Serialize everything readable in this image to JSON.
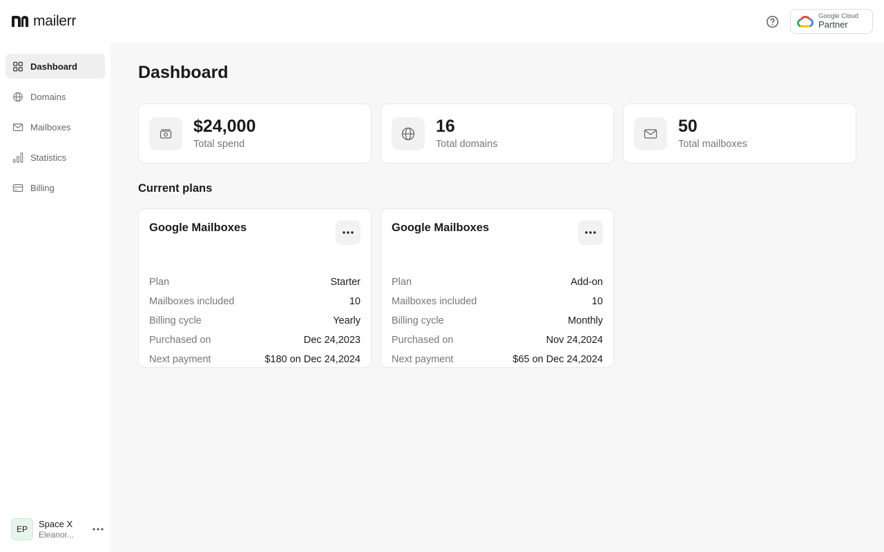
{
  "brand": {
    "name": "mailerr"
  },
  "partner": {
    "line1": "Google Cloud",
    "line2": "Partner"
  },
  "sidebar": {
    "items": [
      {
        "label": "Dashboard",
        "icon": "grid-icon",
        "active": true
      },
      {
        "label": "Domains",
        "icon": "globe-icon",
        "active": false
      },
      {
        "label": "Mailboxes",
        "icon": "mail-icon",
        "active": false
      },
      {
        "label": "Statistics",
        "icon": "bar-chart-icon",
        "active": false
      },
      {
        "label": "Billing",
        "icon": "credit-card-icon",
        "active": false
      }
    ]
  },
  "account": {
    "initials": "EP",
    "workspace": "Space X",
    "user": "Eleanor..."
  },
  "page": {
    "title": "Dashboard",
    "plans_title": "Current plans"
  },
  "stats": [
    {
      "value": "$24,000",
      "label": "Total spend",
      "icon": "money-icon"
    },
    {
      "value": "16",
      "label": "Total domains",
      "icon": "globe-icon"
    },
    {
      "value": "50",
      "label": "Total mailboxes",
      "icon": "mail-icon"
    }
  ],
  "plans": [
    {
      "name": "Google Mailboxes",
      "rows": [
        {
          "key": "Plan",
          "value": "Starter"
        },
        {
          "key": "Mailboxes included",
          "value": "10"
        },
        {
          "key": "Billing cycle",
          "value": "Yearly"
        },
        {
          "key": "Purchased on",
          "value": "Dec 24,2023"
        },
        {
          "key": "Next payment",
          "value": "$180 on Dec 24,2024"
        }
      ]
    },
    {
      "name": "Google Mailboxes",
      "rows": [
        {
          "key": "Plan",
          "value": "Add-on"
        },
        {
          "key": "Mailboxes included",
          "value": "10"
        },
        {
          "key": "Billing cycle",
          "value": "Monthly"
        },
        {
          "key": "Purchased on",
          "value": "Nov 24,2024"
        },
        {
          "key": "Next payment",
          "value": "$65 on Dec 24,2024"
        }
      ]
    }
  ],
  "colors": {
    "accent_bg": "#efefef",
    "main_bg": "#f7f7f7",
    "muted_text": "#777777"
  }
}
